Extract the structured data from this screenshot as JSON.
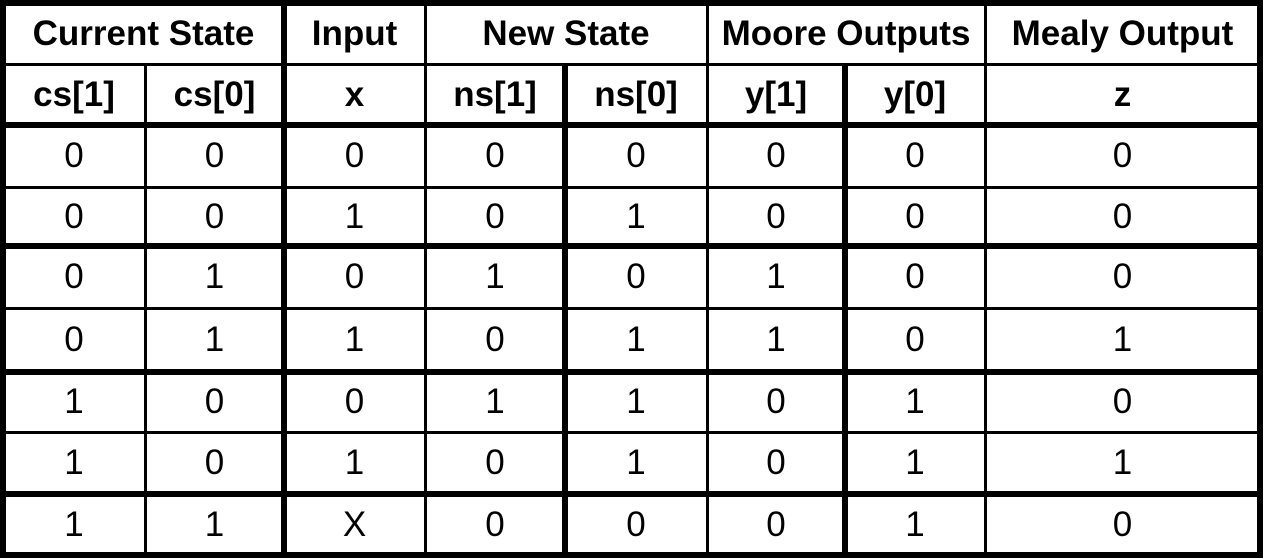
{
  "table": {
    "group_headers": [
      "Current State",
      "Input",
      "New State",
      "Moore Outputs",
      "Mealy Output"
    ],
    "column_headers": [
      "cs[1]",
      "cs[0]",
      "x",
      "ns[1]",
      "ns[0]",
      "y[1]",
      "y[0]",
      "z"
    ],
    "rows": [
      [
        "0",
        "0",
        "0",
        "0",
        "0",
        "0",
        "0",
        "0"
      ],
      [
        "0",
        "0",
        "1",
        "0",
        "1",
        "0",
        "0",
        "0"
      ],
      [
        "0",
        "1",
        "0",
        "1",
        "0",
        "1",
        "0",
        "0"
      ],
      [
        "0",
        "1",
        "1",
        "0",
        "1",
        "1",
        "0",
        "1"
      ],
      [
        "1",
        "0",
        "0",
        "1",
        "1",
        "0",
        "1",
        "0"
      ],
      [
        "1",
        "0",
        "1",
        "0",
        "1",
        "0",
        "1",
        "1"
      ],
      [
        "1",
        "1",
        "X",
        "0",
        "0",
        "0",
        "1",
        "0"
      ]
    ]
  }
}
